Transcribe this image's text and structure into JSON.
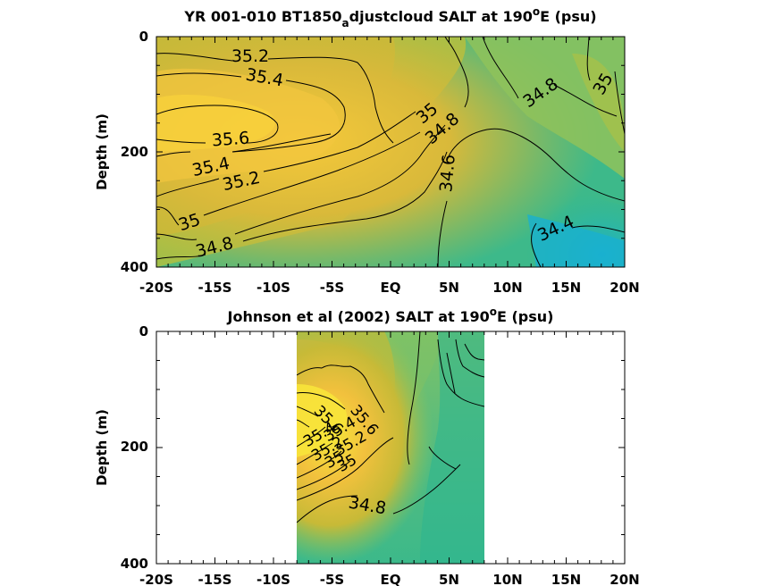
{
  "chart_data": [
    {
      "type": "contour",
      "title_main": "YR 001-010 BT1850",
      "title_sub": "a",
      "title_rest": "djustcloud SALT at 190",
      "title_sup": "o",
      "title_end": "E (psu)",
      "ylabel": "Depth (m)",
      "xticks": [
        "-20S",
        "-15S",
        "-10S",
        "-5S",
        "EQ",
        "5N",
        "10N",
        "15N",
        "20N"
      ],
      "yticks": [
        "0",
        "200",
        "400"
      ],
      "xlim": [
        -20,
        20
      ],
      "ylim": [
        0,
        400
      ],
      "contour_labels": [
        "35.2",
        "35.4",
        "35.6",
        "35.4",
        "35.2",
        "35",
        "34.8",
        "35",
        "34.8",
        "34.6",
        "34.8",
        "35",
        "34.4"
      ]
    },
    {
      "type": "contour",
      "title_main": "Johnson et al (2002) SALT at 190",
      "title_sup": "o",
      "title_end": "E (psu)",
      "ylabel": "Depth (m)",
      "xticks": [
        "-20S",
        "-15S",
        "-10S",
        "-5S",
        "EQ",
        "5N",
        "10N",
        "15N",
        "20N"
      ],
      "yticks": [
        "0",
        "200",
        "400"
      ],
      "xlim": [
        -20,
        20
      ],
      "ylim": [
        0,
        400
      ],
      "data_xrange": [
        -8,
        8
      ],
      "contour_labels": [
        "35.6",
        "35.4",
        "35.2",
        "35",
        "35.6",
        "35.4",
        "35.2",
        "35",
        "34.8"
      ]
    }
  ]
}
